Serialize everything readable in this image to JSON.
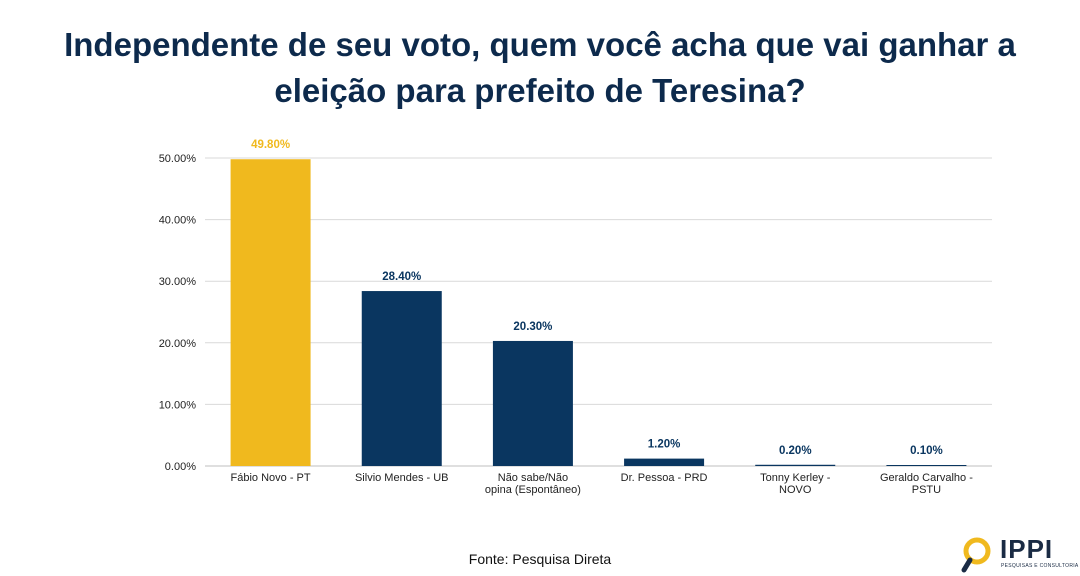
{
  "title_line1": "Independente de seu voto, quem você acha que vai ganhar a",
  "title_line2": "eleição para prefeito de Teresina?",
  "source": "Fonte: Pesquisa Direta",
  "logo": {
    "name": "IPPI",
    "subtitle": "PESQUISAS E CONSULTORIA"
  },
  "colors": {
    "highlight": "#f0b91e",
    "bar": "#0a3660",
    "text": "#0d2a4c",
    "grid": "#d9d9d9"
  },
  "chart_data": {
    "type": "bar",
    "categories": [
      [
        "Fábio Novo - PT"
      ],
      [
        "Silvio Mendes - UB"
      ],
      [
        "Não sabe/Não",
        "opina (Espontâneo)"
      ],
      [
        "Dr. Pessoa - PRD"
      ],
      [
        "Tonny Kerley -",
        "NOVO"
      ],
      [
        "Geraldo Carvalho -",
        "PSTU"
      ]
    ],
    "values": [
      49.8,
      28.4,
      20.3,
      1.2,
      0.2,
      0.1
    ],
    "value_labels": [
      "49.80%",
      "28.40%",
      "20.30%",
      "1.20%",
      "0.20%",
      "0.10%"
    ],
    "highlight_index": 0,
    "ylim": [
      0,
      50
    ],
    "yticks": [
      0,
      10,
      20,
      30,
      40,
      50
    ],
    "ytick_labels": [
      "0.00%",
      "10.00%",
      "20.00%",
      "30.00%",
      "40.00%",
      "50.00%"
    ],
    "grid": true,
    "xlabel": "",
    "ylabel": ""
  }
}
